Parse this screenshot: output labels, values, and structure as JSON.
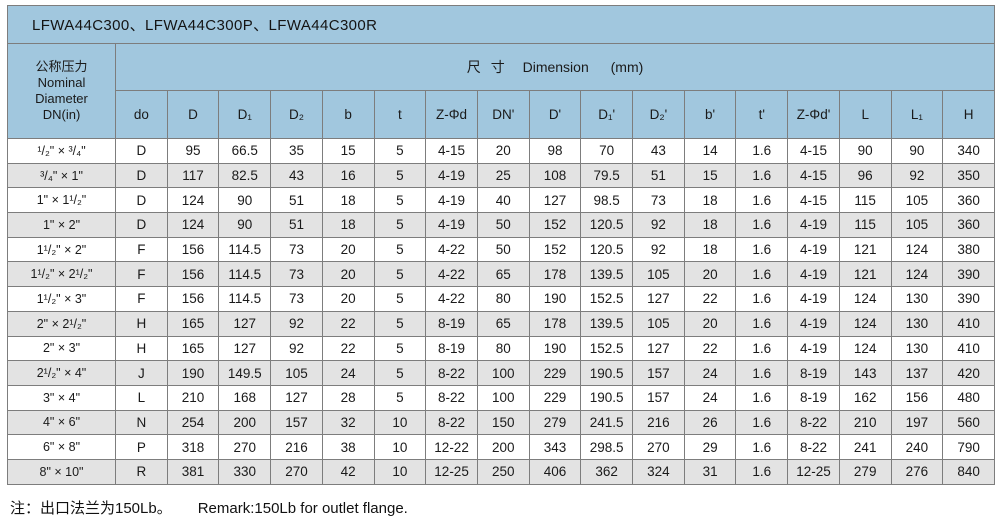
{
  "title_bar": "LFWA44C300、LFWA44C300P、LFWA44C300R",
  "table": {
    "corner_header": "公称压力\nNominal\nDiameter\nDN(in)",
    "dimension_header": {
      "zh": "尺寸",
      "en": "Dimension",
      "unit": "(mm)"
    },
    "columns": [
      "do",
      "D",
      "D₁",
      "D₂",
      "b",
      "t",
      "Z-Φd",
      "DN'",
      "D'",
      "D₁'",
      "D₂'",
      "b'",
      "t'",
      "Z-Φd'",
      "L",
      "L₁",
      "H"
    ],
    "rows": [
      {
        "size": "¹/₂\" × ³/₄\"",
        "values": [
          "D",
          "95",
          "66.5",
          "35",
          "15",
          "5",
          "4-15",
          "20",
          "98",
          "70",
          "43",
          "14",
          "1.6",
          "4-15",
          "90",
          "90",
          "340"
        ]
      },
      {
        "size": "³/₄\" × 1\"",
        "values": [
          "D",
          "117",
          "82.5",
          "43",
          "16",
          "5",
          "4-19",
          "25",
          "108",
          "79.5",
          "51",
          "15",
          "1.6",
          "4-15",
          "96",
          "92",
          "350"
        ]
      },
      {
        "size": "1\" × 1¹/₂\"",
        "values": [
          "D",
          "124",
          "90",
          "51",
          "18",
          "5",
          "4-19",
          "40",
          "127",
          "98.5",
          "73",
          "18",
          "1.6",
          "4-15",
          "115",
          "105",
          "360"
        ]
      },
      {
        "size": "1\" × 2\"",
        "values": [
          "D",
          "124",
          "90",
          "51",
          "18",
          "5",
          "4-19",
          "50",
          "152",
          "120.5",
          "92",
          "18",
          "1.6",
          "4-19",
          "115",
          "105",
          "360"
        ]
      },
      {
        "size": "1¹/₂\" × 2\"",
        "values": [
          "F",
          "156",
          "114.5",
          "73",
          "20",
          "5",
          "4-22",
          "50",
          "152",
          "120.5",
          "92",
          "18",
          "1.6",
          "4-19",
          "121",
          "124",
          "380"
        ]
      },
      {
        "size": "1¹/₂\" × 2¹/₂\"",
        "values": [
          "F",
          "156",
          "114.5",
          "73",
          "20",
          "5",
          "4-22",
          "65",
          "178",
          "139.5",
          "105",
          "20",
          "1.6",
          "4-19",
          "121",
          "124",
          "390"
        ]
      },
      {
        "size": "1¹/₂\" × 3\"",
        "values": [
          "F",
          "156",
          "114.5",
          "73",
          "20",
          "5",
          "4-22",
          "80",
          "190",
          "152.5",
          "127",
          "22",
          "1.6",
          "4-19",
          "124",
          "130",
          "390"
        ]
      },
      {
        "size": "2\" × 2¹/₂\"",
        "values": [
          "H",
          "165",
          "127",
          "92",
          "22",
          "5",
          "8-19",
          "65",
          "178",
          "139.5",
          "105",
          "20",
          "1.6",
          "4-19",
          "124",
          "130",
          "410"
        ]
      },
      {
        "size": "2\" × 3\"",
        "values": [
          "H",
          "165",
          "127",
          "92",
          "22",
          "5",
          "8-19",
          "80",
          "190",
          "152.5",
          "127",
          "22",
          "1.6",
          "4-19",
          "124",
          "130",
          "410"
        ]
      },
      {
        "size": "2¹/₂\" × 4\"",
        "values": [
          "J",
          "190",
          "149.5",
          "105",
          "24",
          "5",
          "8-22",
          "100",
          "229",
          "190.5",
          "157",
          "24",
          "1.6",
          "8-19",
          "143",
          "137",
          "420"
        ]
      },
      {
        "size": "3\" × 4\"",
        "values": [
          "L",
          "210",
          "168",
          "127",
          "28",
          "5",
          "8-22",
          "100",
          "229",
          "190.5",
          "157",
          "24",
          "1.6",
          "8-19",
          "162",
          "156",
          "480"
        ]
      },
      {
        "size": "4\" × 6\"",
        "values": [
          "N",
          "254",
          "200",
          "157",
          "32",
          "10",
          "8-22",
          "150",
          "279",
          "241.5",
          "216",
          "26",
          "1.6",
          "8-22",
          "210",
          "197",
          "560"
        ]
      },
      {
        "size": "6\" × 8\"",
        "values": [
          "P",
          "318",
          "270",
          "216",
          "38",
          "10",
          "12-22",
          "200",
          "343",
          "298.5",
          "270",
          "29",
          "1.6",
          "8-22",
          "241",
          "240",
          "790"
        ]
      },
      {
        "size": "8\" × 10\"",
        "values": [
          "R",
          "381",
          "330",
          "270",
          "42",
          "10",
          "12-25",
          "250",
          "406",
          "362",
          "324",
          "31",
          "1.6",
          "12-25",
          "279",
          "276",
          "840"
        ]
      }
    ]
  },
  "footer": {
    "note_zh": "注：出口法兰为150Lb。",
    "note_en": "Remark:150Lb for outlet flange."
  },
  "colors": {
    "header_blue": "#a1c7de",
    "row_alt_gray": "#e3e3e3",
    "border_gray": "#7d7d7d"
  }
}
